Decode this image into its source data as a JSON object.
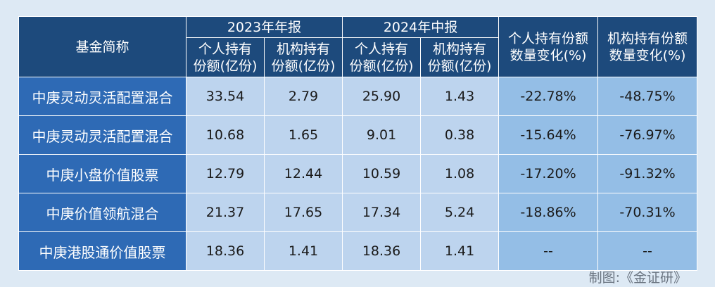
{
  "table": {
    "header": {
      "fund_name": "基金简称",
      "group_2023": "2023年年报",
      "group_2024": "2024年中报",
      "personal_share_l1": "个人持有",
      "personal_share_l2": "份额(亿份)",
      "institution_share_l1": "机构持有",
      "institution_share_l2": "份额(亿份)",
      "personal_change_l1": "个人持有份额",
      "personal_change_l2": "数量变化(%)",
      "institution_change_l1": "机构持有份额",
      "institution_change_l2": "数量变化(%)"
    },
    "rows": [
      {
        "name": "中庚灵动灵活配置混合",
        "p2023": "33.54",
        "i2023": "2.79",
        "p2024": "25.90",
        "i2024": "1.43",
        "pchg": "-22.78%",
        "ichg": "-48.75%"
      },
      {
        "name": "中庚灵动灵活配置混合",
        "p2023": "10.68",
        "i2023": "1.65",
        "p2024": "9.01",
        "i2024": "0.38",
        "pchg": "-15.64%",
        "ichg": "-76.97%"
      },
      {
        "name": "中庚小盘价值股票",
        "p2023": "12.79",
        "i2023": "12.44",
        "p2024": "10.59",
        "i2024": "1.08",
        "pchg": "-17.20%",
        "ichg": "-91.32%"
      },
      {
        "name": "中庚价值领航混合",
        "p2023": "21.37",
        "i2023": "17.65",
        "p2024": "17.34",
        "i2024": "5.24",
        "pchg": "-18.86%",
        "ichg": "-70.31%"
      },
      {
        "name": "中庚港股通价值股票",
        "p2023": "18.36",
        "i2023": "1.41",
        "p2024": "18.36",
        "i2024": "1.41",
        "pchg": "--",
        "ichg": "--"
      }
    ]
  },
  "caption": "制图:《金证研》",
  "colors": {
    "header_bg": "#1d4a7c",
    "name_col_bg": "#2e6ab5",
    "value_bg": "#bdd4ee",
    "change_bg": "#94bee6",
    "page_bg": "#dde9f4"
  }
}
